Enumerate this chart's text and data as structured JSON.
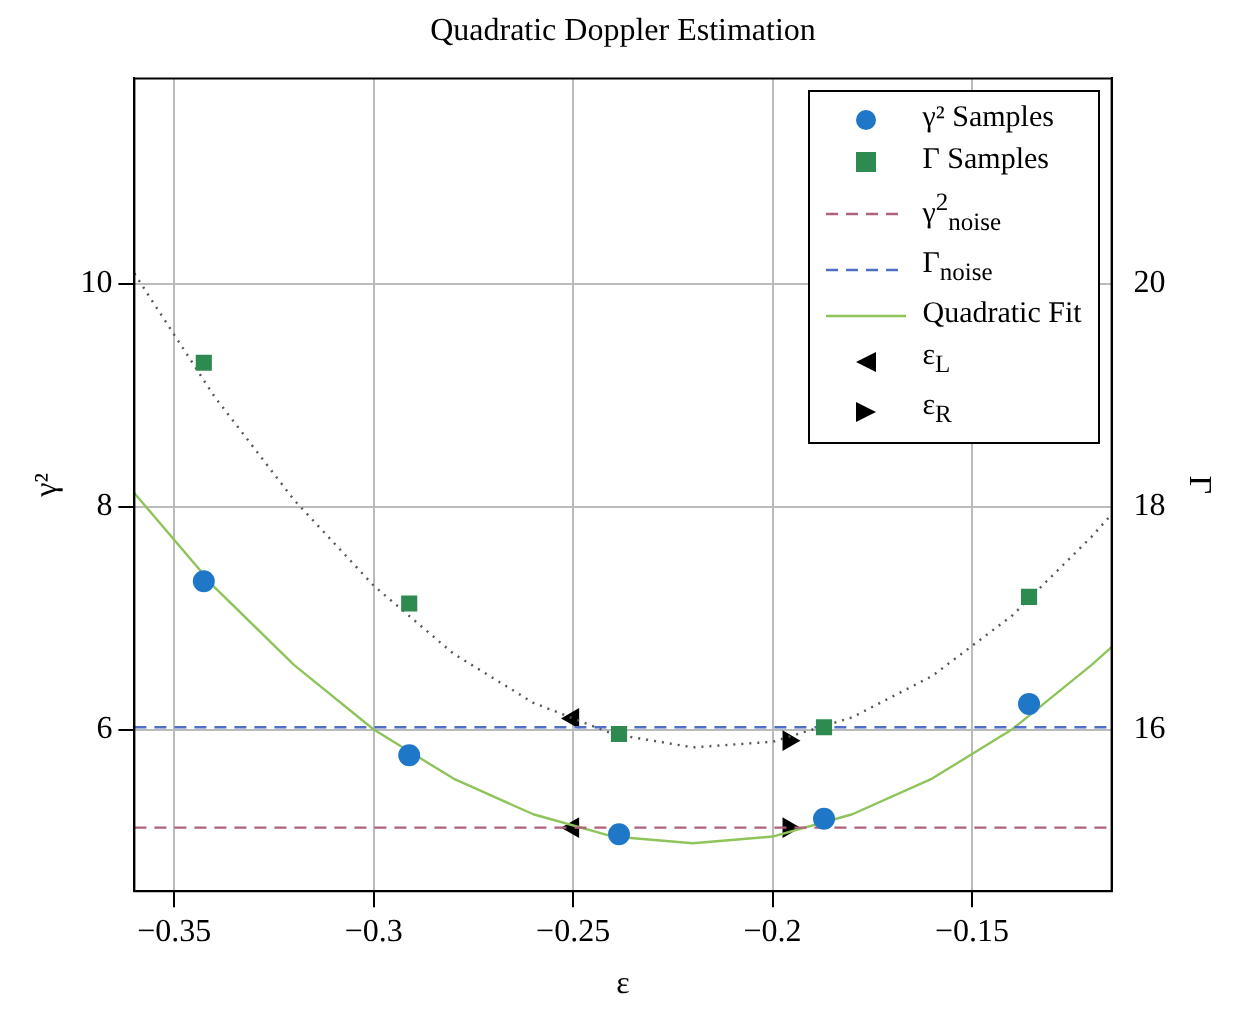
{
  "chart_data": {
    "type": "scatter",
    "title": "Quadratic Doppler Estimation",
    "xlabel": "ε",
    "ylabel": "γ²",
    "y2label": "Γ",
    "xlim": [
      -0.36,
      -0.115
    ],
    "xticks": [
      -0.35,
      -0.3,
      -0.25,
      -0.2,
      -0.15
    ],
    "ylim": [
      4.55,
      11.84
    ],
    "yticks": [
      6,
      8,
      10
    ],
    "y2lim": [
      14.55,
      21.84
    ],
    "y2ticks": [
      16,
      18,
      20
    ],
    "grid": true,
    "legend": "top right",
    "series": [
      {
        "name": "γ² Samples",
        "type": "scatter",
        "marker": "circle",
        "color": "#1f77c8",
        "x": [
          -0.3426,
          -0.2911,
          -0.2385,
          -0.1871,
          -0.1357
        ],
        "values": [
          7.33,
          5.77,
          5.06,
          5.2,
          6.23
        ]
      },
      {
        "name": "Γ Samples",
        "type": "scatter",
        "marker": "square",
        "color": "#2e8b50",
        "axis": "y2",
        "x": [
          -0.3426,
          -0.2911,
          -0.2385,
          -0.1871,
          -0.1357
        ],
        "values": [
          19.29,
          17.13,
          15.96,
          16.02,
          17.19
        ]
      },
      {
        "name": "γ$^{2}$$_{noise}$",
        "type": "line",
        "marker": "none",
        "line_style": "dashed",
        "color": "#b0607a",
        "x": [
          -0.36,
          -0.115
        ],
        "values": [
          5.12,
          5.12
        ]
      },
      {
        "name": "Γ$_{noise}$",
        "type": "line",
        "marker": "none",
        "line_style": "dashed",
        "color": "#5070c8",
        "axis": "y2",
        "x": [
          -0.36,
          -0.115
        ],
        "values": [
          16.02,
          16.02
        ]
      },
      {
        "name": "Quadratic Fit",
        "type": "line",
        "marker": "none",
        "line_style": "solid",
        "color": "#8fc45a",
        "x": [
          -0.36,
          -0.34,
          -0.32,
          -0.3,
          -0.28,
          -0.26,
          -0.24,
          -0.22,
          -0.2,
          -0.18,
          -0.16,
          -0.14,
          -0.12,
          -0.115
        ],
        "values": [
          8.12,
          7.28,
          6.58,
          6.0,
          5.56,
          5.24,
          5.04,
          4.98,
          5.04,
          5.24,
          5.56,
          6.0,
          6.58,
          6.74
        ]
      },
      {
        "type": "line",
        "marker": "none",
        "line_style": "dotted",
        "color": "#555555",
        "axis": "y2",
        "x": [
          -0.36,
          -0.34,
          -0.32,
          -0.3,
          -0.28,
          -0.26,
          -0.24,
          -0.22,
          -0.2,
          -0.18,
          -0.16,
          -0.14,
          -0.12,
          -0.115
        ],
        "values": [
          20.09,
          18.99,
          18.06,
          17.29,
          16.68,
          16.24,
          15.96,
          15.84,
          15.89,
          16.11,
          16.48,
          17.02,
          17.73,
          17.93
        ]
      },
      {
        "name": "ε$_{L}$",
        "type": "scatter",
        "marker": "triangle",
        "color": "#000000",
        "x": [
          -0.25,
          -0.25
        ],
        "values": [
          5.12,
          6.1
        ]
      },
      {
        "name": "ε$_{R}$",
        "type": "scatter",
        "marker": "triangle",
        "color": "#000000",
        "x": [
          -0.196,
          -0.196
        ],
        "values": [
          5.12,
          5.9
        ]
      }
    ]
  }
}
